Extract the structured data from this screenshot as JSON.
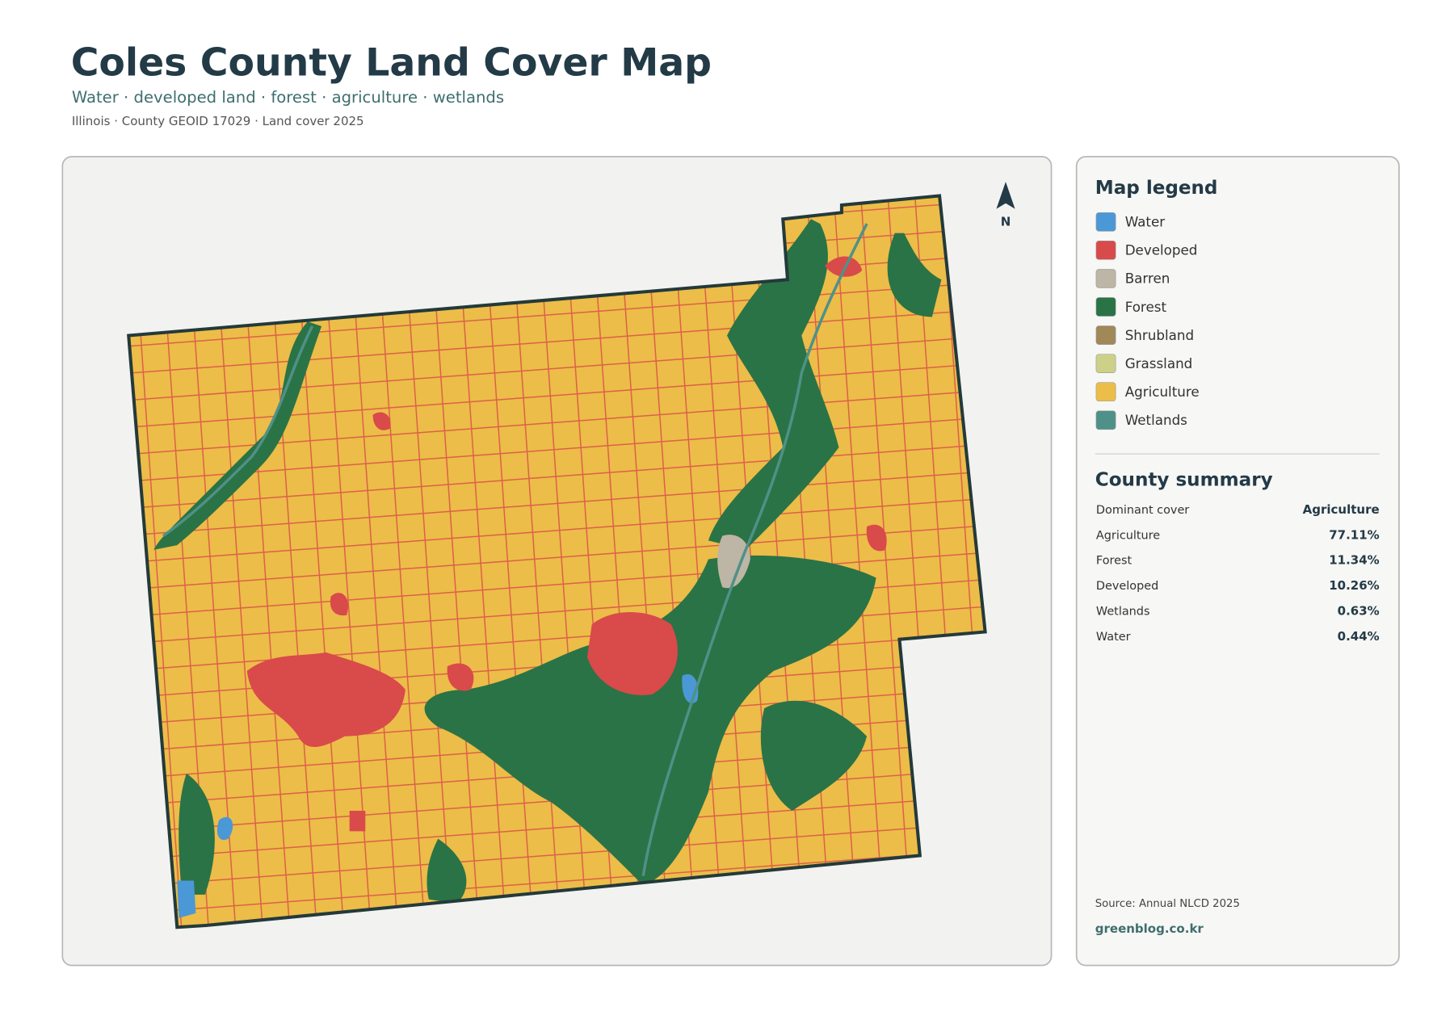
{
  "header": {
    "title": "Coles County Land Cover Map",
    "subtitle": "Water · developed land · forest · agriculture · wetlands",
    "meta": "Illinois · County GEOID 17029 · Land cover 2025"
  },
  "map": {
    "north_label": "N"
  },
  "legend": {
    "title": "Map legend",
    "items": [
      {
        "label": "Water",
        "color": "#4a98d6"
      },
      {
        "label": "Developed",
        "color": "#d94a4a"
      },
      {
        "label": "Barren",
        "color": "#bdb5a5"
      },
      {
        "label": "Forest",
        "color": "#2a7346"
      },
      {
        "label": "Shrubland",
        "color": "#a08858"
      },
      {
        "label": "Grassland",
        "color": "#ccd088"
      },
      {
        "label": "Agriculture",
        "color": "#ecbd48"
      },
      {
        "label": "Wetlands",
        "color": "#4f9188"
      }
    ]
  },
  "summary": {
    "title": "County summary",
    "rows": [
      [
        "Dominant cover",
        "Agriculture"
      ],
      [
        "Agriculture",
        "77.11%"
      ],
      [
        "Forest",
        "11.34%"
      ],
      [
        "Developed",
        "10.26%"
      ],
      [
        "Wetlands",
        "0.63%"
      ],
      [
        "Water",
        "0.44%"
      ]
    ]
  },
  "footer": {
    "source": "Source: Annual NLCD 2025",
    "site": "greenblog.co.kr"
  }
}
